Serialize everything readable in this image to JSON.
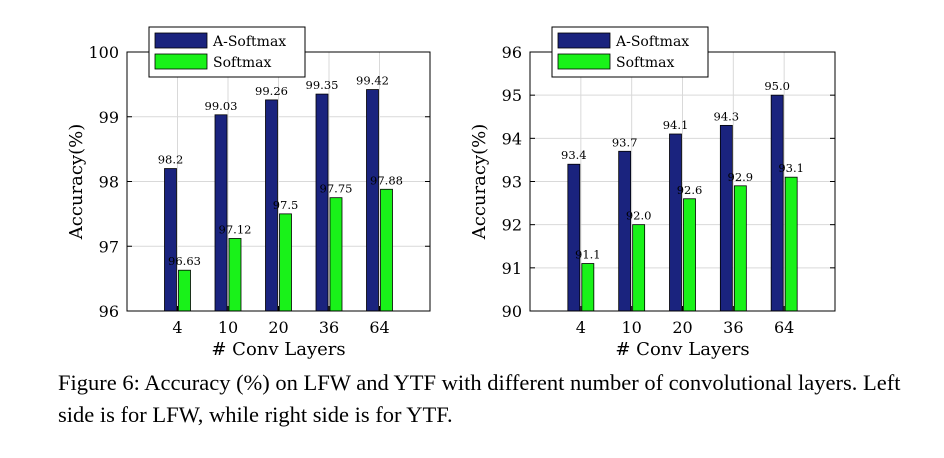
{
  "chart_data": [
    {
      "type": "bar",
      "categories": [
        "4",
        "10",
        "20",
        "36",
        "64"
      ],
      "series": [
        {
          "name": "A-Softmax",
          "color": "#1a237e",
          "values": [
            98.2,
            99.03,
            99.26,
            99.35,
            99.42
          ]
        },
        {
          "name": "Softmax",
          "color": "#19f219",
          "values": [
            96.63,
            97.12,
            97.5,
            97.75,
            97.88
          ]
        }
      ],
      "value_labels": {
        "A-Softmax": [
          "98.2",
          "99.03",
          "99.26",
          "99.35",
          "99.42"
        ],
        "Softmax": [
          "96.63",
          "97.12",
          "97.5",
          "97.75",
          "97.88"
        ]
      },
      "ylim": [
        96,
        100
      ],
      "yticks": [
        "96",
        "97",
        "98",
        "99",
        "100"
      ],
      "xlabel": "# Conv Layers",
      "ylabel": "Accuracy(%)",
      "grid": true,
      "legend": "top-left"
    },
    {
      "type": "bar",
      "categories": [
        "4",
        "10",
        "20",
        "36",
        "64"
      ],
      "series": [
        {
          "name": "A-Softmax",
          "color": "#1a237e",
          "values": [
            93.4,
            93.7,
            94.1,
            94.3,
            95.0
          ]
        },
        {
          "name": "Softmax",
          "color": "#19f219",
          "values": [
            91.1,
            92.0,
            92.6,
            92.9,
            93.1
          ]
        }
      ],
      "value_labels": {
        "A-Softmax": [
          "93.4",
          "93.7",
          "94.1",
          "94.3",
          "95.0"
        ],
        "Softmax": [
          "91.1",
          "92.0",
          "92.6",
          "92.9",
          "93.1"
        ]
      },
      "ylim": [
        90,
        96
      ],
      "yticks": [
        "90",
        "91",
        "92",
        "93",
        "94",
        "95",
        "96"
      ],
      "xlabel": "# Conv Layers",
      "ylabel": "Accuracy(%)",
      "grid": true,
      "legend": "top-left"
    }
  ],
  "caption": "Figure 6: Accuracy (%) on LFW and YTF with different number of convolutional layers. Left side is for LFW, while right side is for YTF."
}
